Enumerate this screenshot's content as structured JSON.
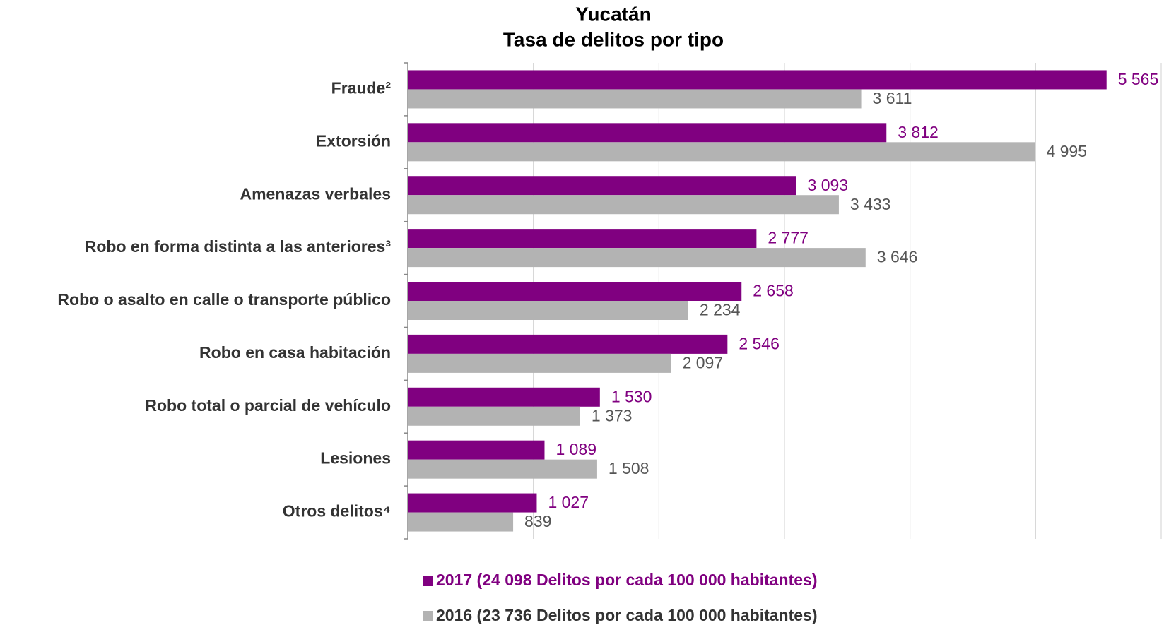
{
  "chart_data": {
    "type": "barh",
    "title": "Yucatán",
    "subtitle": "Tasa de delitos por tipo",
    "categories": [
      "Fraude²",
      "Extorsión",
      "Amenazas verbales",
      "Robo en forma distinta a las anteriores³",
      "Robo o asalto en calle o transporte público",
      "Robo en casa habitación",
      "Robo total o parcial de vehículo",
      "Lesiones",
      "Otros delitos⁴"
    ],
    "series": [
      {
        "name": "2017 (24 098 Delitos por cada 100 000 habitantes)",
        "color": "#800080",
        "values": [
          5565,
          3812,
          3093,
          2777,
          2658,
          2546,
          1530,
          1089,
          1027
        ],
        "value_labels": [
          "5 565",
          "3 812",
          "3 093",
          "2 777",
          "2 658",
          "2 546",
          "1 530",
          "1 089",
          "1 027"
        ]
      },
      {
        "name": "2016 (23 736 Delitos por cada 100 000 habitantes)",
        "color": "#b3b3b3",
        "values": [
          3611,
          4995,
          3433,
          3646,
          2234,
          2097,
          1373,
          1508,
          839
        ],
        "value_labels": [
          "3 611",
          "4 995",
          "3 433",
          "3 646",
          "2 234",
          "2 097",
          "1 373",
          "1 508",
          "839"
        ]
      }
    ],
    "xlim": [
      0,
      6000
    ],
    "xticks": [
      0,
      1000,
      2000,
      3000,
      4000,
      5000,
      6000
    ],
    "grid": true
  }
}
